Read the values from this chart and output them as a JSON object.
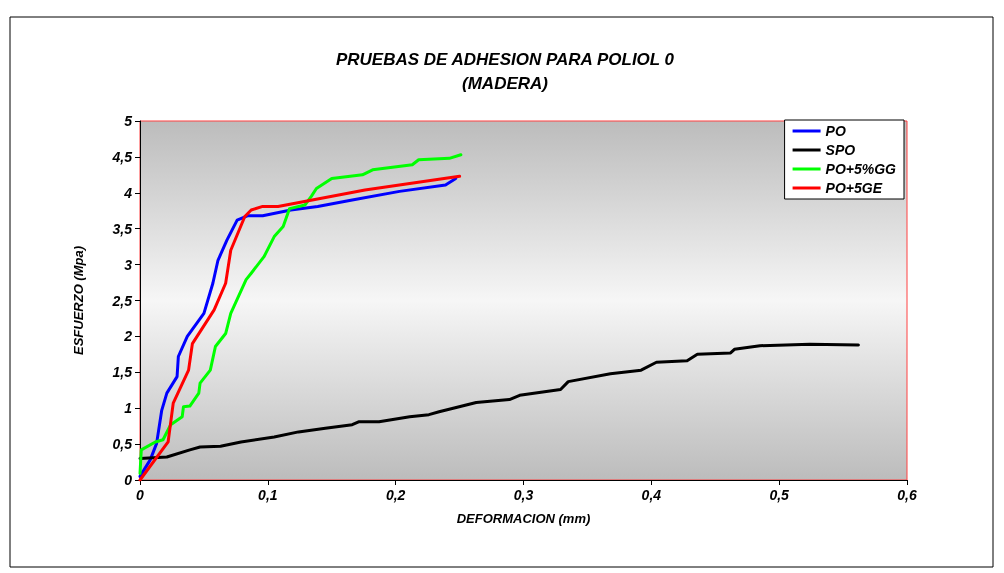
{
  "chart_data": {
    "type": "line",
    "title": "PRUEBAS DE ADHESION PARA POLIOL 0\n(MADERA)",
    "xlabel": "DEFORMACION (mm)",
    "ylabel": "ESFUERZO (Mpa)",
    "xlim": [
      0,
      0.6
    ],
    "ylim": [
      0,
      5
    ],
    "xticks": [
      0,
      {
        "value": 0.1,
        "label": "0,1"
      },
      {
        "value": 0.2,
        "label": "0,2"
      },
      {
        "value": 0.3,
        "label": "0,3"
      },
      {
        "value": 0.4,
        "label": "0,4"
      },
      {
        "value": 0.5,
        "label": "0,5"
      },
      {
        "value": 0.6,
        "label": "0,6"
      }
    ],
    "yticks": [
      0,
      {
        "value": 0.5,
        "label": "0,5"
      },
      1,
      {
        "value": 1.5,
        "label": "1,5"
      },
      2,
      {
        "value": 2.5,
        "label": "2,5"
      },
      3,
      {
        "value": 3.5,
        "label": "3,5"
      },
      4,
      {
        "value": 4.5,
        "label": "4,5"
      },
      5
    ],
    "grid": false,
    "legend": "top right",
    "marker": "none",
    "line_style": "solid",
    "series": [
      {
        "name": "PO",
        "color": "#0000ff",
        "x": [
          0,
          0.008,
          0.013,
          0.017,
          0.021,
          0.029,
          0.03,
          0.037,
          0.05,
          0.057,
          0.061,
          0.068,
          0.076,
          0.084,
          0.096,
          0.118,
          0.139,
          0.166,
          0.203,
          0.239,
          0.247
        ],
        "values": [
          0.05,
          0.28,
          0.51,
          0.97,
          1.21,
          1.44,
          1.72,
          2.0,
          2.32,
          2.74,
          3.06,
          3.34,
          3.62,
          3.68,
          3.68,
          3.76,
          3.81,
          3.9,
          4.02,
          4.11,
          4.2
        ]
      },
      {
        "name": "SPO",
        "color": "#000000",
        "x": [
          0,
          0.021,
          0.039,
          0.047,
          0.063,
          0.079,
          0.105,
          0.124,
          0.145,
          0.166,
          0.171,
          0.187,
          0.211,
          0.226,
          0.234,
          0.245,
          0.263,
          0.289,
          0.297,
          0.329,
          0.335,
          0.368,
          0.392,
          0.404,
          0.428,
          0.436,
          0.462,
          0.465,
          0.485,
          0.524,
          0.562
        ],
        "values": [
          0.3,
          0.32,
          0.42,
          0.46,
          0.47,
          0.53,
          0.6,
          0.67,
          0.72,
          0.77,
          0.81,
          0.81,
          0.88,
          0.91,
          0.95,
          1.0,
          1.08,
          1.12,
          1.18,
          1.26,
          1.37,
          1.48,
          1.53,
          1.64,
          1.66,
          1.75,
          1.77,
          1.82,
          1.87,
          1.89,
          1.88
        ]
      },
      {
        "name": "PO+5%GG",
        "color": "#00ff00",
        "x": [
          0,
          0.001,
          0.012,
          0.018,
          0.024,
          0.033,
          0.034,
          0.039,
          0.046,
          0.047,
          0.055,
          0.059,
          0.067,
          0.071,
          0.083,
          0.087,
          0.097,
          0.105,
          0.112,
          0.117,
          0.129,
          0.134,
          0.138,
          0.15,
          0.174,
          0.182,
          0.213,
          0.218,
          0.242,
          0.251
        ],
        "values": [
          0.09,
          0.42,
          0.53,
          0.56,
          0.77,
          0.88,
          1.02,
          1.03,
          1.21,
          1.35,
          1.53,
          1.86,
          2.04,
          2.32,
          2.79,
          2.88,
          3.11,
          3.39,
          3.53,
          3.78,
          3.83,
          3.95,
          4.06,
          4.2,
          4.25,
          4.32,
          4.39,
          4.46,
          4.48,
          4.53
        ]
      },
      {
        "name": "PO+5GE",
        "color": "#ff0000",
        "x": [
          0,
          0.022,
          0.026,
          0.038,
          0.041,
          0.058,
          0.067,
          0.071,
          0.082,
          0.087,
          0.096,
          0.108,
          0.176,
          0.25
        ],
        "values": [
          0,
          0.53,
          1.07,
          1.53,
          1.9,
          2.37,
          2.74,
          3.2,
          3.67,
          3.76,
          3.81,
          3.81,
          4.04,
          4.23
        ]
      }
    ]
  }
}
